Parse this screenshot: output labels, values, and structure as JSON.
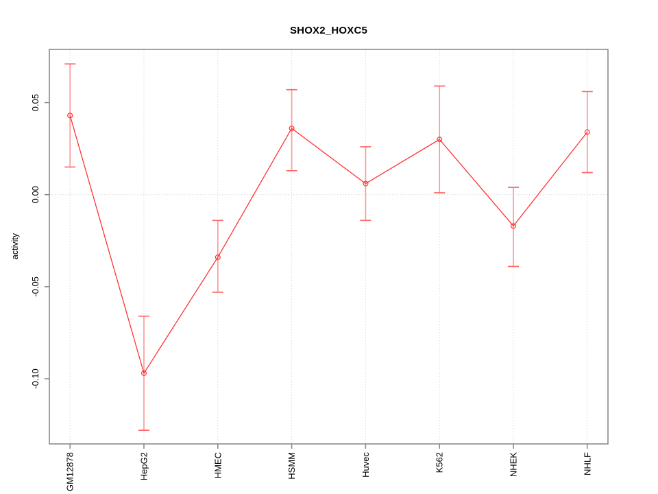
{
  "chart_data": {
    "type": "line",
    "title": "SHOX2_HOXC5",
    "ylabel": "activity",
    "xlabel": "",
    "categories": [
      "GM12878",
      "HepG2",
      "HMEC",
      "HSMM",
      "Huvec",
      "K562",
      "NHEK",
      "NHLF"
    ],
    "series": [
      {
        "name": "activity",
        "values": [
          0.043,
          -0.097,
          -0.034,
          0.036,
          0.006,
          0.03,
          -0.017,
          0.034
        ]
      }
    ],
    "error_upper": [
      0.071,
      -0.066,
      -0.014,
      0.057,
      0.026,
      0.059,
      0.004,
      0.056
    ],
    "error_lower": [
      0.015,
      -0.128,
      -0.053,
      0.013,
      -0.014,
      0.001,
      -0.039,
      0.012
    ],
    "ylim": [
      -0.1354,
      0.0789
    ],
    "yticks": [
      0.05,
      0,
      -0.05,
      -0.1
    ],
    "ytick_labels": [
      "0.05",
      "0.00",
      "-0.05",
      "-0.10"
    ],
    "legend": "none",
    "grid": {
      "vertical_at_categories": true,
      "horizontal_at_zero": true,
      "style": "dotted"
    },
    "colors": {
      "line": "#ff3232",
      "point": "#ff3232",
      "error_bar": "#ff9999",
      "error_cap": "#ff6666",
      "box": "#848484",
      "tick": "#848484",
      "grid": "#d9d9d9",
      "text": "#000000",
      "background": "#ffffff"
    }
  }
}
